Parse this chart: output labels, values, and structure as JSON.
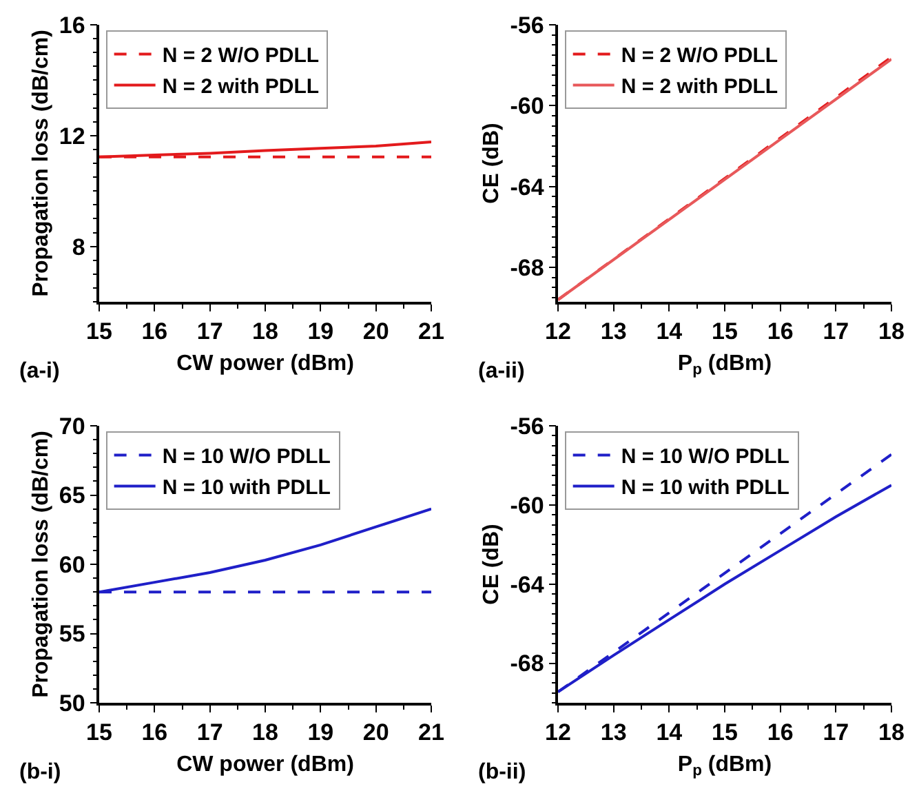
{
  "chart_data": [
    {
      "type": "line",
      "xlabel": "CW power (dBm)",
      "ylabel": "Propagation loss (dB/cm)",
      "annotations": [
        "(a-i)"
      ],
      "xlim": [
        15,
        21
      ],
      "xticks": [
        15,
        16,
        17,
        18,
        19,
        20,
        21
      ],
      "ylim": [
        6,
        16
      ],
      "yticks": [
        8,
        12,
        16
      ],
      "grid": false,
      "legend": "top left",
      "series": [
        {
          "name": "N = 2 W/O PDLL",
          "color": "#e31a1c",
          "line_style": "dashed",
          "x": [
            15,
            21
          ],
          "values": [
            11.23,
            11.23
          ]
        },
        {
          "name": "N = 2 with PDLL",
          "color": "#e31a1c",
          "line_style": "solid",
          "x": [
            15,
            16,
            17,
            18,
            19,
            20,
            21
          ],
          "values": [
            11.23,
            11.3,
            11.36,
            11.46,
            11.54,
            11.62,
            11.77
          ]
        }
      ]
    },
    {
      "type": "line",
      "xlabel": "P$_{p}$ (dBm)",
      "ylabel": "CE (dB)",
      "annotations": [
        "(a-ii)"
      ],
      "xlim": [
        12,
        18
      ],
      "xticks": [
        12,
        13,
        14,
        15,
        16,
        17,
        18
      ],
      "ylim": [
        -69.7,
        -56
      ],
      "yticks": [
        -68,
        -64,
        -60,
        -56
      ],
      "grid": false,
      "legend": "top left",
      "series": [
        {
          "name": "N = 2 W/O PDLL",
          "color": "#e31a1c",
          "line_style": "dashed",
          "x": [
            12,
            18
          ],
          "values": [
            -69.6,
            -57.6
          ]
        },
        {
          "name": "N = 2 with PDLL",
          "color": "#e8585a",
          "line_style": "solid",
          "x": [
            12,
            18
          ],
          "values": [
            -69.6,
            -57.7
          ]
        }
      ]
    },
    {
      "type": "line",
      "xlabel": "CW power (dBm)",
      "ylabel": "Propagation loss (dB/cm)",
      "annotations": [
        "(b-i)"
      ],
      "xlim": [
        15,
        21
      ],
      "xticks": [
        15,
        16,
        17,
        18,
        19,
        20,
        21
      ],
      "ylim": [
        50,
        70
      ],
      "yticks": [
        50,
        55,
        60,
        65,
        70
      ],
      "grid": false,
      "legend": "top left",
      "series": [
        {
          "name": "N = 10 W/O PDLL",
          "color": "#1f1fc8",
          "line_style": "dashed",
          "x": [
            15,
            21
          ],
          "values": [
            58.0,
            58.0
          ]
        },
        {
          "name": "N = 10 with PDLL",
          "color": "#1f1fc8",
          "line_style": "solid",
          "x": [
            15,
            16,
            17,
            18,
            19,
            20,
            21
          ],
          "values": [
            58.0,
            58.7,
            59.4,
            60.3,
            61.4,
            62.7,
            64.0
          ]
        }
      ]
    },
    {
      "type": "line",
      "xlabel": "P$_{p}$ (dBm)",
      "ylabel": "CE (dB)",
      "annotations": [
        "(b-ii)"
      ],
      "xlim": [
        12,
        18
      ],
      "xticks": [
        12,
        13,
        14,
        15,
        16,
        17,
        18
      ],
      "ylim": [
        -70,
        -56
      ],
      "yticks": [
        -68,
        -64,
        -60,
        -56
      ],
      "grid": false,
      "legend": "top left",
      "series": [
        {
          "name": "N = 10 W/O PDLL",
          "color": "#1f1fc8",
          "line_style": "dashed",
          "x": [
            12,
            18
          ],
          "values": [
            -69.45,
            -57.45
          ]
        },
        {
          "name": "N = 10 with PDLL",
          "color": "#1f1fc8",
          "line_style": "solid",
          "x": [
            12,
            13,
            14,
            15,
            16,
            17,
            18
          ],
          "values": [
            -69.45,
            -67.6,
            -65.8,
            -64.0,
            -62.3,
            -60.6,
            -59.0
          ]
        }
      ]
    }
  ]
}
